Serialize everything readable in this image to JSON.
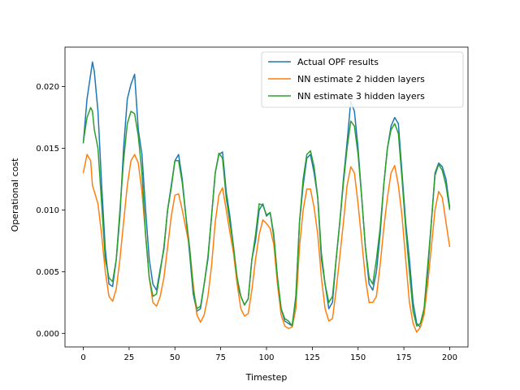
{
  "chart_data": {
    "type": "line",
    "title": "",
    "xlabel": "Timestep",
    "ylabel": "Operational cost",
    "xlim": [
      -10,
      210
    ],
    "ylim": [
      -0.0011,
      0.0232
    ],
    "xticks": [
      0,
      25,
      50,
      75,
      100,
      125,
      150,
      175,
      200
    ],
    "yticks": [
      0.0,
      0.005,
      0.01,
      0.015,
      0.02
    ],
    "ytick_labels": [
      "0.000",
      "0.005",
      "0.010",
      "0.015",
      "0.020"
    ],
    "grid": false,
    "legend_position": "top-right",
    "x": [
      0,
      2,
      4,
      5,
      6,
      8,
      10,
      12,
      14,
      16,
      18,
      20,
      22,
      24,
      26,
      28,
      30,
      32,
      34,
      36,
      38,
      40,
      42,
      44,
      46,
      48,
      50,
      52,
      54,
      56,
      58,
      60,
      62,
      64,
      66,
      68,
      70,
      72,
      74,
      76,
      78,
      80,
      82,
      84,
      86,
      88,
      90,
      92,
      94,
      96,
      98,
      100,
      102,
      104,
      106,
      108,
      110,
      112,
      114,
      116,
      118,
      120,
      122,
      124,
      126,
      128,
      130,
      132,
      134,
      136,
      138,
      140,
      142,
      144,
      146,
      148,
      150,
      152,
      154,
      156,
      158,
      160,
      162,
      164,
      166,
      168,
      170,
      172,
      174,
      176,
      178,
      180,
      182,
      184,
      186,
      188,
      190,
      192,
      194,
      196,
      198,
      200
    ],
    "series": [
      {
        "name": "Actual OPF results",
        "color": "#1f77b4",
        "values": [
          0.0154,
          0.019,
          0.021,
          0.022,
          0.0212,
          0.018,
          0.012,
          0.0068,
          0.004,
          0.0038,
          0.006,
          0.0095,
          0.015,
          0.019,
          0.0202,
          0.021,
          0.0165,
          0.0145,
          0.01,
          0.006,
          0.004,
          0.0035,
          0.0052,
          0.0068,
          0.01,
          0.012,
          0.014,
          0.0145,
          0.0125,
          0.0095,
          0.0065,
          0.0032,
          0.0018,
          0.002,
          0.004,
          0.006,
          0.0095,
          0.013,
          0.0145,
          0.0147,
          0.0115,
          0.0095,
          0.007,
          0.004,
          0.003,
          0.0023,
          0.0028,
          0.006,
          0.0075,
          0.01,
          0.0105,
          0.0095,
          0.0098,
          0.0078,
          0.0045,
          0.002,
          0.001,
          0.0008,
          0.0006,
          0.003,
          0.009,
          0.012,
          0.0142,
          0.0145,
          0.013,
          0.011,
          0.006,
          0.004,
          0.002,
          0.0025,
          0.006,
          0.009,
          0.0125,
          0.0155,
          0.0188,
          0.018,
          0.015,
          0.011,
          0.007,
          0.004,
          0.0035,
          0.005,
          0.008,
          0.012,
          0.015,
          0.0168,
          0.0175,
          0.017,
          0.013,
          0.009,
          0.006,
          0.0025,
          0.0008,
          0.0005,
          0.0018,
          0.005,
          0.009,
          0.013,
          0.0138,
          0.0135,
          0.0125,
          0.0102
        ]
      },
      {
        "name": "NN estimate 2 hidden layers",
        "color": "#ff7f0e",
        "values": [
          0.013,
          0.0145,
          0.014,
          0.012,
          0.0115,
          0.0105,
          0.008,
          0.005,
          0.003,
          0.0026,
          0.0036,
          0.006,
          0.009,
          0.012,
          0.014,
          0.0145,
          0.0138,
          0.0115,
          0.008,
          0.0045,
          0.0025,
          0.0022,
          0.003,
          0.0045,
          0.007,
          0.0095,
          0.0112,
          0.0113,
          0.01,
          0.0085,
          0.007,
          0.004,
          0.0015,
          0.0009,
          0.0015,
          0.003,
          0.0055,
          0.009,
          0.0112,
          0.0118,
          0.01,
          0.0082,
          0.0065,
          0.004,
          0.002,
          0.0014,
          0.0016,
          0.0035,
          0.006,
          0.008,
          0.0092,
          0.0089,
          0.0085,
          0.0072,
          0.004,
          0.0015,
          0.0006,
          0.0004,
          0.0005,
          0.002,
          0.007,
          0.01,
          0.0117,
          0.0117,
          0.0102,
          0.008,
          0.0045,
          0.002,
          0.001,
          0.0012,
          0.0035,
          0.0062,
          0.009,
          0.012,
          0.0135,
          0.013,
          0.0105,
          0.0075,
          0.0045,
          0.0025,
          0.0025,
          0.003,
          0.0055,
          0.0085,
          0.011,
          0.013,
          0.0136,
          0.012,
          0.0095,
          0.006,
          0.0025,
          0.0008,
          0.0001,
          0.0005,
          0.0015,
          0.004,
          0.007,
          0.01,
          0.0115,
          0.011,
          0.009,
          0.007
        ]
      },
      {
        "name": "NN estimate 3 hidden layers",
        "color": "#2ca02c",
        "values": [
          0.0155,
          0.0175,
          0.0183,
          0.018,
          0.0165,
          0.015,
          0.0105,
          0.006,
          0.0045,
          0.0042,
          0.006,
          0.01,
          0.014,
          0.017,
          0.018,
          0.0178,
          0.016,
          0.013,
          0.008,
          0.0045,
          0.003,
          0.0032,
          0.005,
          0.007,
          0.01,
          0.0118,
          0.014,
          0.014,
          0.0122,
          0.0095,
          0.007,
          0.0035,
          0.002,
          0.0022,
          0.004,
          0.0062,
          0.0095,
          0.013,
          0.0146,
          0.0142,
          0.011,
          0.009,
          0.007,
          0.0045,
          0.003,
          0.0023,
          0.0028,
          0.006,
          0.008,
          0.0105,
          0.0104,
          0.0096,
          0.0098,
          0.008,
          0.0045,
          0.002,
          0.0012,
          0.001,
          0.0006,
          0.0028,
          0.009,
          0.0125,
          0.0145,
          0.0148,
          0.0135,
          0.011,
          0.0065,
          0.004,
          0.0025,
          0.003,
          0.006,
          0.009,
          0.0122,
          0.015,
          0.0172,
          0.0168,
          0.0145,
          0.011,
          0.007,
          0.0045,
          0.004,
          0.006,
          0.0085,
          0.012,
          0.015,
          0.0165,
          0.017,
          0.0162,
          0.0125,
          0.0085,
          0.005,
          0.0018,
          0.0006,
          0.0008,
          0.002,
          0.0055,
          0.009,
          0.0128,
          0.0137,
          0.0132,
          0.012,
          0.01
        ]
      }
    ]
  }
}
